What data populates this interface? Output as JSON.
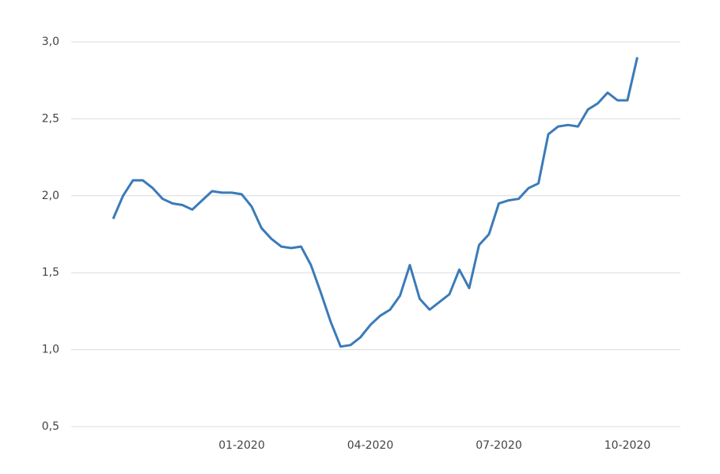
{
  "chart_data": {
    "type": "line",
    "categories": [
      null,
      null,
      null,
      null,
      null,
      null,
      null,
      null,
      null,
      null,
      null,
      null,
      null,
      "01-2020",
      null,
      null,
      null,
      null,
      null,
      null,
      null,
      null,
      null,
      null,
      null,
      null,
      "04-2020",
      null,
      null,
      null,
      null,
      null,
      null,
      null,
      null,
      null,
      null,
      null,
      null,
      "07-2020",
      null,
      null,
      null,
      null,
      null,
      null,
      null,
      null,
      null,
      null,
      null,
      null,
      "10-2020",
      null
    ],
    "values": [
      1.85,
      2.0,
      2.1,
      2.1,
      2.05,
      1.98,
      1.95,
      1.94,
      1.91,
      1.97,
      2.03,
      2.02,
      2.02,
      2.01,
      1.93,
      1.79,
      1.72,
      1.67,
      1.66,
      1.67,
      1.55,
      1.37,
      1.18,
      1.02,
      1.03,
      1.08,
      1.16,
      1.22,
      1.26,
      1.35,
      1.55,
      1.33,
      1.26,
      1.31,
      1.36,
      1.52,
      1.4,
      1.68,
      1.75,
      1.95,
      1.97,
      1.98,
      2.05,
      2.08,
      2.4,
      2.45,
      2.46,
      2.45,
      2.56,
      2.6,
      2.67,
      2.62,
      2.62,
      2.9
    ],
    "color": "#3b7bb8",
    "ylim": [
      0.5,
      3.0
    ],
    "yticks": [
      {
        "value": 0.5,
        "label": "0,5"
      },
      {
        "value": 1.0,
        "label": "1,0"
      },
      {
        "value": 1.5,
        "label": "1,5"
      },
      {
        "value": 2.0,
        "label": "2,0"
      },
      {
        "value": 2.5,
        "label": "2,5"
      },
      {
        "value": 3.0,
        "label": "3,0"
      }
    ],
    "grid": true
  }
}
